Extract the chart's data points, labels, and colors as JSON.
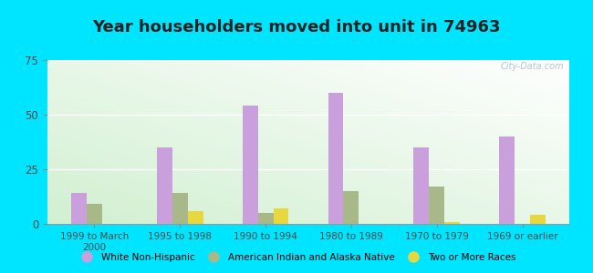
{
  "title": "Year householders moved into unit in 74963",
  "categories": [
    "1999 to March\n2000",
    "1995 to 1998",
    "1990 to 1994",
    "1980 to 1989",
    "1970 to 1979",
    "1969 or earlier"
  ],
  "series": {
    "White Non-Hispanic": [
      14,
      35,
      54,
      60,
      35,
      40
    ],
    "American Indian and Alaska Native": [
      9,
      14,
      5,
      15,
      17,
      0
    ],
    "Two or More Races": [
      0,
      6,
      7,
      0,
      1,
      4
    ]
  },
  "colors": {
    "White Non-Hispanic": "#c9a0dc",
    "American Indian and Alaska Native": "#a8b888",
    "Two or More Races": "#e8d840"
  },
  "ylim": [
    0,
    75
  ],
  "yticks": [
    0,
    25,
    50,
    75
  ],
  "outer_bg": "#00e5ff",
  "bar_width": 0.18,
  "title_fontsize": 13,
  "title_color": "#222222"
}
